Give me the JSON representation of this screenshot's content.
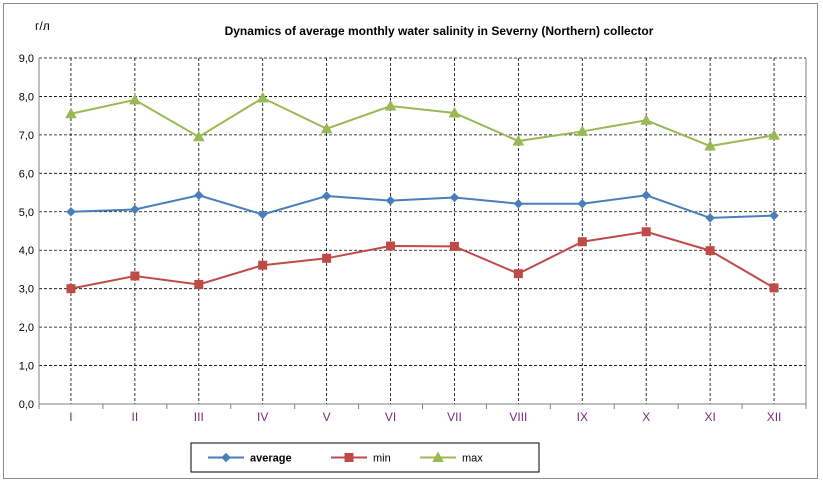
{
  "chart_data": {
    "type": "line",
    "title": "Dynamics of average monthly water salinity in Severny (Northern) collector",
    "ylabel": "г/л",
    "xlabel": "",
    "ylim": [
      0,
      9
    ],
    "yticks": [
      "0,0",
      "1,0",
      "2,0",
      "3,0",
      "4,0",
      "5,0",
      "6,0",
      "7,0",
      "8,0",
      "9,0"
    ],
    "categories": [
      "I",
      "II",
      "III",
      "IV",
      "V",
      "VI",
      "VII",
      "VIII",
      "IX",
      "X",
      "XI",
      "XII"
    ],
    "grid": true,
    "legend_position": "bottom",
    "series": [
      {
        "name": "average",
        "color": "#4a7ebb",
        "marker": "diamond",
        "values": [
          5.0,
          5.06,
          5.43,
          4.93,
          5.41,
          5.29,
          5.37,
          5.21,
          5.21,
          5.43,
          4.84,
          4.9
        ]
      },
      {
        "name": "min",
        "color": "#be4b48",
        "marker": "square",
        "values": [
          3.0,
          3.33,
          3.11,
          3.61,
          3.79,
          4.11,
          4.1,
          3.39,
          4.22,
          4.48,
          3.99,
          3.02
        ]
      },
      {
        "name": "max",
        "color": "#98b954",
        "marker": "triangle",
        "values": [
          7.55,
          7.91,
          6.95,
          7.96,
          7.16,
          7.75,
          7.57,
          6.84,
          7.09,
          7.38,
          6.71,
          6.99
        ]
      }
    ]
  }
}
